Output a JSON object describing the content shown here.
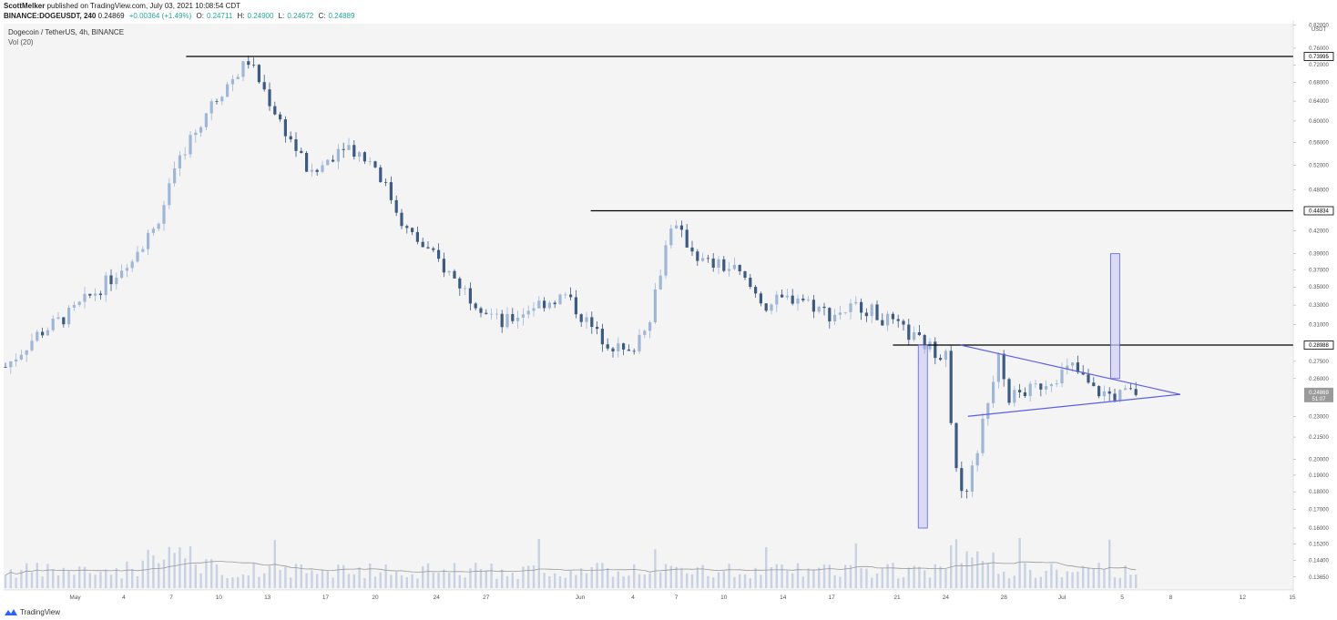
{
  "header": {
    "author": "ScottMelker",
    "published_text": "published on TradingView.com, July 03, 2021 10:08:54 CDT",
    "symbol_line": "BINANCE:DOGEUSDT, 240",
    "price": "0.24869",
    "change": "+0.00364 (+1.49%)",
    "open_label": "O:",
    "open": "0.24711",
    "high_label": "H:",
    "high": "0.24900",
    "low_label": "L:",
    "low": "0.24672",
    "close_label": "C:",
    "close": "0.24889"
  },
  "legend": {
    "title": "Dogecoin / TetherUS, 4h, BINANCE",
    "vol": "Vol (20)"
  },
  "footer": {
    "brand": "TradingView",
    "logo_icon": "tradingview-logo-icon"
  },
  "colors": {
    "candle_up": "#9fb6d6",
    "candle_down": "#3d5a80",
    "volume": "#c8d2e2",
    "resistance": "#000000",
    "triangle": "#5a5ee8",
    "range_box_fill": "#cfcff3",
    "range_box_stroke": "#5a5ee8",
    "price_axis_bg": "#ffffff"
  },
  "chart_data": {
    "type": "candlestick",
    "scale": "log",
    "currency": "USDT",
    "price_axis_labels": [
      "0.82000",
      "0.76000",
      "0.72000",
      "0.68000",
      "0.64000",
      "0.60000",
      "0.56000",
      "0.52000",
      "0.48000",
      "0.42000",
      "0.39000",
      "0.37000",
      "0.35000",
      "0.33000",
      "0.31000",
      "0.27500",
      "0.26000",
      "0.23000",
      "0.21500",
      "0.20000",
      "0.19000",
      "0.18000",
      "0.17000",
      "0.16000",
      "0.15200",
      "0.14400",
      "0.13650"
    ],
    "time_axis_labels": [
      "May",
      "4",
      "7",
      "10",
      "13",
      "17",
      "20",
      "24",
      "27",
      "Jun",
      "4",
      "7",
      "10",
      "14",
      "17",
      "21",
      "24",
      "28",
      "Jul",
      "5",
      "8",
      "12",
      "15"
    ],
    "current_price_label": "0.24869",
    "current_timer_label": "51:07",
    "horizontal_levels": [
      {
        "value": 0.73995,
        "label": "0.73995",
        "from": "May 8"
      },
      {
        "value": 0.44834,
        "label": "0.44834",
        "from": "Jun 2"
      },
      {
        "value": 0.28988,
        "label": "0.28988",
        "from": "Jun 20"
      }
    ],
    "price_path": [
      {
        "t": 0,
        "p": 0.27
      },
      {
        "t": 3,
        "p": 0.3
      },
      {
        "t": 6,
        "p": 0.32
      },
      {
        "t": 10,
        "p": 0.36
      },
      {
        "t": 14,
        "p": 0.42
      },
      {
        "t": 17,
        "p": 0.55
      },
      {
        "t": 20,
        "p": 0.65
      },
      {
        "t": 23,
        "p": 0.73
      },
      {
        "t": 26,
        "p": 0.6
      },
      {
        "t": 29,
        "p": 0.5
      },
      {
        "t": 32,
        "p": 0.56
      },
      {
        "t": 35,
        "p": 0.52
      },
      {
        "t": 38,
        "p": 0.42
      },
      {
        "t": 41,
        "p": 0.38
      },
      {
        "t": 44,
        "p": 0.34
      },
      {
        "t": 47,
        "p": 0.31
      },
      {
        "t": 50,
        "p": 0.33
      },
      {
        "t": 53,
        "p": 0.34
      },
      {
        "t": 56,
        "p": 0.3
      },
      {
        "t": 59,
        "p": 0.28
      },
      {
        "t": 61,
        "p": 0.32
      },
      {
        "t": 63,
        "p": 0.43
      },
      {
        "t": 66,
        "p": 0.38
      },
      {
        "t": 69,
        "p": 0.37
      },
      {
        "t": 72,
        "p": 0.33
      },
      {
        "t": 75,
        "p": 0.34
      },
      {
        "t": 78,
        "p": 0.32
      },
      {
        "t": 81,
        "p": 0.33
      },
      {
        "t": 84,
        "p": 0.31
      },
      {
        "t": 87,
        "p": 0.29
      },
      {
        "t": 89,
        "p": 0.28
      },
      {
        "t": 90,
        "p": 0.19
      },
      {
        "t": 91,
        "p": 0.18
      },
      {
        "t": 93,
        "p": 0.24
      },
      {
        "t": 94,
        "p": 0.285
      },
      {
        "t": 95,
        "p": 0.245
      },
      {
        "t": 97,
        "p": 0.25
      },
      {
        "t": 99,
        "p": 0.26
      },
      {
        "t": 101,
        "p": 0.27
      },
      {
        "t": 103,
        "p": 0.25
      },
      {
        "t": 105,
        "p": 0.246
      },
      {
        "t": 107,
        "p": 0.2487
      }
    ],
    "annotations": {
      "triangle": {
        "upper_start": 0.28988,
        "lower_start": 0.23,
        "apex": 0.247
      },
      "range_box_1": {
        "low": 0.16,
        "high": 0.28988
      },
      "range_box_2": {
        "low": 0.26,
        "high": 0.39
      }
    }
  }
}
